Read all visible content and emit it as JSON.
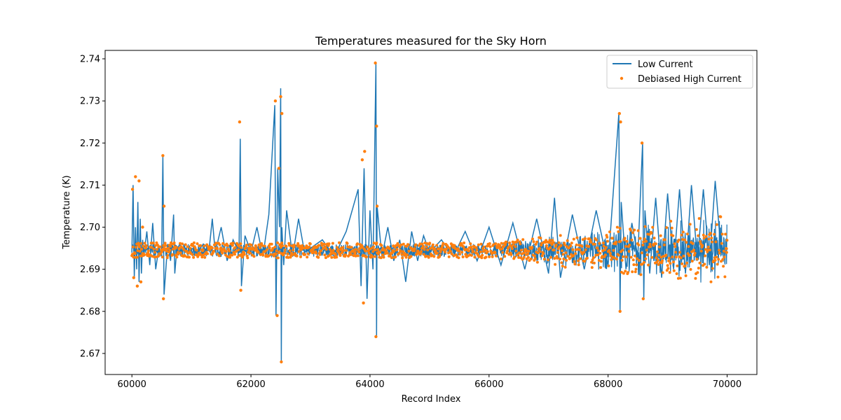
{
  "chart_data": {
    "type": "line",
    "title": "Temperatures measured for the Sky Horn",
    "xlabel": "Record Index",
    "ylabel": "Temperature (K)",
    "xlim": [
      59550,
      70500
    ],
    "ylim": [
      2.665,
      2.742
    ],
    "xticks": [
      60000,
      62000,
      64000,
      66000,
      68000,
      70000
    ],
    "yticks": [
      2.67,
      2.68,
      2.69,
      2.7,
      2.71,
      2.72,
      2.73,
      2.74
    ],
    "ytick_labels": [
      "2.67",
      "2.68",
      "2.69",
      "2.70",
      "2.71",
      "2.72",
      "2.73",
      "2.74"
    ],
    "legend_position": "top-right",
    "series": [
      {
        "name": "Low Current",
        "style": "line",
        "color": "#1f77b4",
        "x": [
          60000,
          60020,
          60040,
          60060,
          60080,
          60100,
          60120,
          60140,
          60160,
          60180,
          60200,
          60250,
          60300,
          60350,
          60400,
          60450,
          60500,
          60520,
          60540,
          60600,
          60650,
          60700,
          60720,
          60750,
          60800,
          60900,
          61000,
          61100,
          61200,
          61300,
          61350,
          61400,
          61500,
          61600,
          61700,
          61800,
          61820,
          61840,
          61900,
          62000,
          62100,
          62200,
          62300,
          62400,
          62420,
          62450,
          62480,
          62500,
          62510,
          62520,
          62550,
          62600,
          62700,
          62800,
          62900,
          63000,
          63200,
          63400,
          63600,
          63800,
          63850,
          63900,
          63950,
          64000,
          64050,
          64100,
          64110,
          64120,
          64200,
          64300,
          64400,
          64500,
          64600,
          64700,
          64800,
          64900,
          65000,
          65200,
          65400,
          65600,
          65800,
          66000,
          66200,
          66400,
          66600,
          66800,
          67000,
          67100,
          67200,
          67400,
          67600,
          67800,
          68000,
          68180,
          68200,
          68220,
          68300,
          68400,
          68500,
          68580,
          68600,
          68620,
          68700,
          68800,
          68900,
          69000,
          69100,
          69200,
          69300,
          69400,
          69500,
          69600,
          69700,
          69800,
          69900,
          70000
        ],
        "values": [
          2.694,
          2.71,
          2.688,
          2.7,
          2.69,
          2.706,
          2.687,
          2.702,
          2.689,
          2.697,
          2.693,
          2.699,
          2.691,
          2.701,
          2.69,
          2.695,
          2.693,
          2.717,
          2.684,
          2.696,
          2.692,
          2.703,
          2.689,
          2.694,
          2.696,
          2.694,
          2.695,
          2.694,
          2.696,
          2.695,
          2.702,
          2.694,
          2.7,
          2.692,
          2.697,
          2.694,
          2.721,
          2.686,
          2.698,
          2.694,
          2.7,
          2.693,
          2.703,
          2.729,
          2.679,
          2.714,
          2.7,
          2.733,
          2.668,
          2.7,
          2.691,
          2.704,
          2.693,
          2.702,
          2.694,
          2.695,
          2.697,
          2.693,
          2.699,
          2.709,
          2.686,
          2.714,
          2.683,
          2.704,
          2.69,
          2.739,
          2.674,
          2.705,
          2.693,
          2.7,
          2.692,
          2.697,
          2.687,
          2.699,
          2.692,
          2.698,
          2.694,
          2.697,
          2.693,
          2.699,
          2.692,
          2.7,
          2.691,
          2.701,
          2.69,
          2.702,
          2.689,
          2.707,
          2.688,
          2.703,
          2.69,
          2.704,
          2.691,
          2.727,
          2.68,
          2.706,
          2.69,
          2.701,
          2.693,
          2.72,
          2.683,
          2.704,
          2.689,
          2.707,
          2.688,
          2.708,
          2.69,
          2.709,
          2.689,
          2.71,
          2.692,
          2.709,
          2.691,
          2.711,
          2.694,
          2.694
        ]
      },
      {
        "name": "Debiased High Current",
        "style": "scatter",
        "color": "#ff7f0e",
        "x": [
          60010,
          60030,
          60060,
          60090,
          60120,
          60150,
          60180,
          60520,
          60530,
          60540,
          61810,
          61830,
          62410,
          62440,
          62470,
          62500,
          62510,
          62520,
          63870,
          63890,
          63910,
          64090,
          64100,
          64110,
          64120,
          68190,
          68200,
          68210,
          68570,
          68590,
          69990
        ],
        "values": [
          2.709,
          2.688,
          2.712,
          2.686,
          2.711,
          2.687,
          2.7,
          2.717,
          2.683,
          2.705,
          2.725,
          2.685,
          2.73,
          2.679,
          2.714,
          2.731,
          2.668,
          2.727,
          2.716,
          2.682,
          2.718,
          2.739,
          2.674,
          2.724,
          2.705,
          2.727,
          2.68,
          2.725,
          2.72,
          2.683,
          2.694
        ]
      }
    ]
  }
}
